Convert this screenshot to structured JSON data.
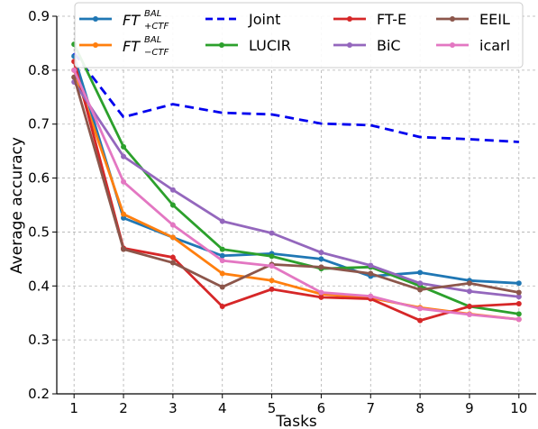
{
  "chart_data": {
    "type": "line",
    "title": "",
    "xlabel": "Tasks",
    "ylabel": "Average accuracy",
    "x": [
      1,
      2,
      3,
      4,
      5,
      6,
      7,
      8,
      9,
      10
    ],
    "xlim": [
      0.65,
      10.35
    ],
    "ylim": [
      0.2,
      0.9
    ],
    "yticks": [
      "0.2",
      "0.3",
      "0.4",
      "0.5",
      "0.6",
      "0.7",
      "0.8",
      "0.9"
    ],
    "xticks": [
      "1",
      "2",
      "3",
      "4",
      "5",
      "6",
      "7",
      "8",
      "9",
      "10"
    ],
    "grid": true,
    "legend_position": "top",
    "series": [
      {
        "name": "FT+CTF",
        "label_main": "FT",
        "label_sup": "BAL",
        "label_sub": "+CTF",
        "color": "#1f77b4",
        "dash": "solid",
        "marker": true,
        "values": [
          0.826,
          0.526,
          0.49,
          0.456,
          0.46,
          0.45,
          0.418,
          0.425,
          0.41,
          0.405
        ]
      },
      {
        "name": "FT-CTF",
        "label_main": "FT",
        "label_sup": "BAL",
        "label_sub": "−CTF",
        "color": "#ff7f0e",
        "dash": "solid",
        "marker": true,
        "values": [
          0.8,
          0.533,
          0.49,
          0.423,
          0.41,
          0.385,
          0.378,
          0.36,
          0.348,
          0.338
        ]
      },
      {
        "name": "Joint",
        "color": "#0000ee",
        "dash": "dashed",
        "marker": false,
        "values": [
          0.832,
          0.713,
          0.737,
          0.721,
          0.718,
          0.701,
          0.698,
          0.676,
          0.672,
          0.667
        ]
      },
      {
        "name": "LUCIR",
        "color": "#2ca02c",
        "dash": "solid",
        "marker": true,
        "values": [
          0.848,
          0.658,
          0.55,
          0.468,
          0.455,
          0.432,
          0.435,
          0.4,
          0.362,
          0.348
        ]
      },
      {
        "name": "FT-E",
        "color": "#d62728",
        "dash": "solid",
        "marker": true,
        "values": [
          0.816,
          0.47,
          0.453,
          0.362,
          0.394,
          0.379,
          0.376,
          0.336,
          0.362,
          0.367
        ]
      },
      {
        "name": "BiC",
        "color": "#9467bd",
        "dash": "solid",
        "marker": true,
        "values": [
          0.778,
          0.64,
          0.578,
          0.52,
          0.498,
          0.462,
          0.438,
          0.405,
          0.39,
          0.38
        ]
      },
      {
        "name": "EEIL",
        "color": "#8c564b",
        "dash": "solid",
        "marker": true,
        "values": [
          0.787,
          0.468,
          0.443,
          0.398,
          0.44,
          0.435,
          0.423,
          0.393,
          0.405,
          0.388
        ]
      },
      {
        "name": "icarl",
        "color": "#e377c2",
        "dash": "solid",
        "marker": true,
        "values": [
          0.8,
          0.593,
          0.513,
          0.447,
          0.437,
          0.388,
          0.381,
          0.358,
          0.347,
          0.338
        ]
      }
    ]
  }
}
